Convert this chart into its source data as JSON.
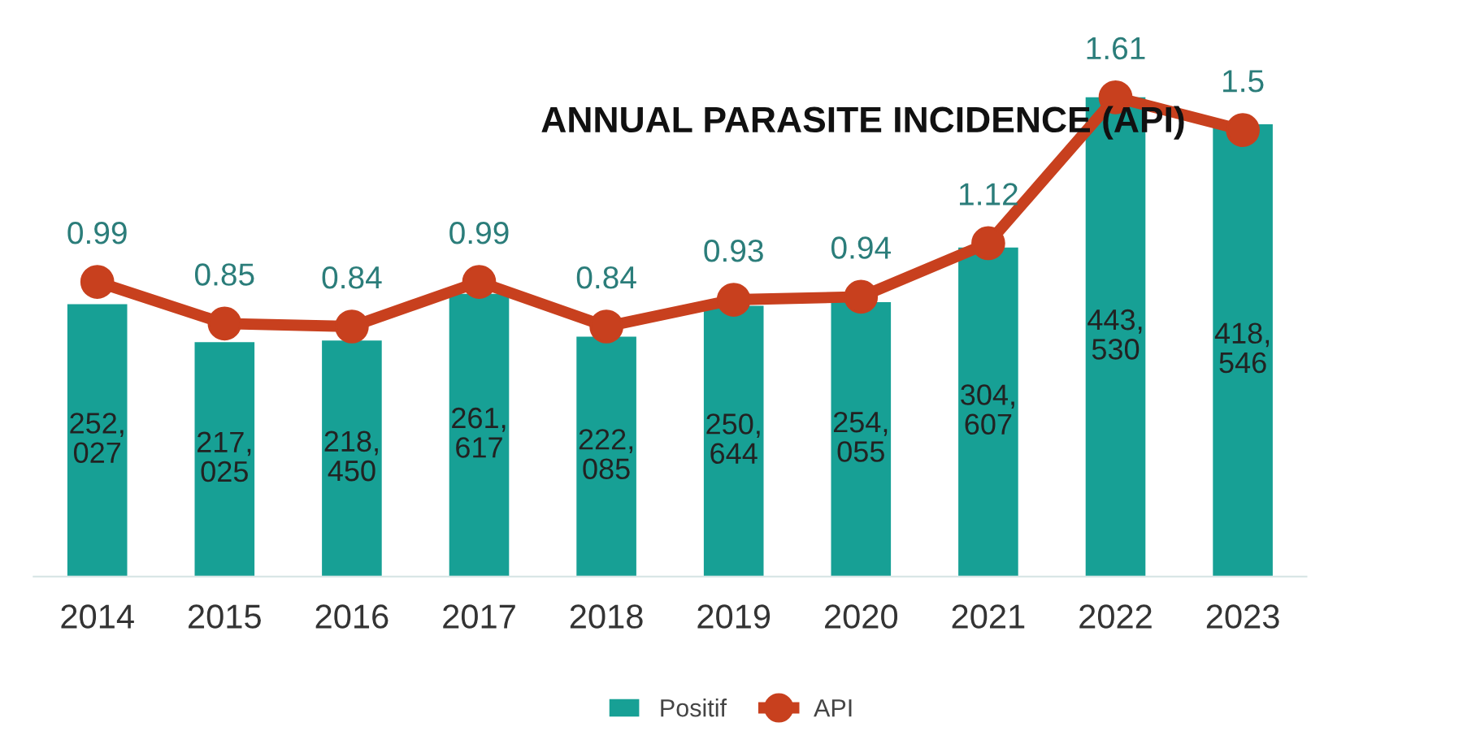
{
  "chart_data": {
    "type": "bar",
    "title": "ANNUAL PARASITE INCIDENCE (API)",
    "categories": [
      "2014",
      "2015",
      "2016",
      "2017",
      "2018",
      "2019",
      "2020",
      "2021",
      "2022",
      "2023"
    ],
    "series": [
      {
        "name": "Positif",
        "color": "#17a095",
        "values": [
          252027,
          217025,
          218450,
          261617,
          222085,
          250644,
          254055,
          304607,
          443530,
          418546
        ],
        "value_labels": [
          "252,027",
          "217,025",
          "218,450",
          "261,617",
          "222,085",
          "250,644",
          "254,055",
          "304,607",
          "443,530",
          "418,546"
        ]
      },
      {
        "name": "API",
        "type": "line",
        "axis": "y2",
        "color": "#c8401e",
        "marker": "circle",
        "values": [
          0.99,
          0.85,
          0.84,
          0.99,
          0.84,
          0.93,
          0.94,
          1.12,
          1.61,
          1.5
        ],
        "value_labels": [
          "0.99",
          "0.85",
          "0.84",
          "0.99",
          "0.84",
          "0.93",
          "0.94",
          "1.12",
          "1.61",
          "1.5"
        ]
      }
    ],
    "legend": "bottom"
  }
}
